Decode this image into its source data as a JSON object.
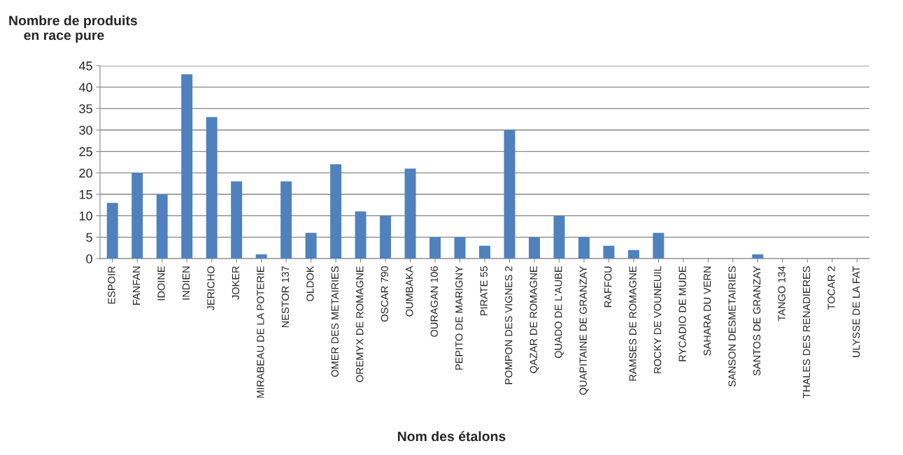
{
  "chart_data": {
    "type": "bar",
    "ylabel": "Nombre de produits\n    en race pure",
    "xlabel": "Nom des étalons",
    "categories": [
      "ESPOIR",
      "FANFAN",
      "IDOINE",
      "INDIEN",
      "JERICHO",
      "JOKER",
      "MIRABEAU DE LA POTERIE",
      "NESTOR 137",
      "OLDOK",
      "OMER DES METAIRIES",
      "OREMYX DE ROMAGNE",
      "OSCAR 790",
      "OUMBAKA",
      "OURAGAN 106",
      "PEPITO DE MARIGNY",
      "PIRATE 55",
      "POMPON DES VIGNES 2",
      "QAZAR DE ROMAGNE",
      "QUADO DE L'AUBE",
      "QUAPITAINE DE GRANZAY",
      "RAFFOU",
      "RAMSES DE ROMAGNE",
      "ROCKY DE VOUNEUIL",
      "RYCADIO DE MUDE",
      "SAHARA DU VERN",
      "SANSON DESMETAIRIES",
      "SANTOS DE GRANZAY",
      "TANGO 134",
      "THALES DES RENADIERES",
      "TOCAR 2",
      "ULYSSE DE LA FAT"
    ],
    "values": [
      13,
      20,
      15,
      43,
      33,
      18,
      1,
      18,
      6,
      22,
      11,
      10,
      21,
      5,
      5,
      3,
      30,
      5,
      10,
      5,
      3,
      2,
      6,
      0,
      0,
      0,
      1,
      0,
      0,
      0,
      0
    ],
    "color": "#4f81bd",
    "ylim": [
      0,
      45
    ],
    "yticks": [
      0,
      5,
      10,
      15,
      20,
      25,
      30,
      35,
      40,
      45
    ],
    "grid": "y"
  }
}
